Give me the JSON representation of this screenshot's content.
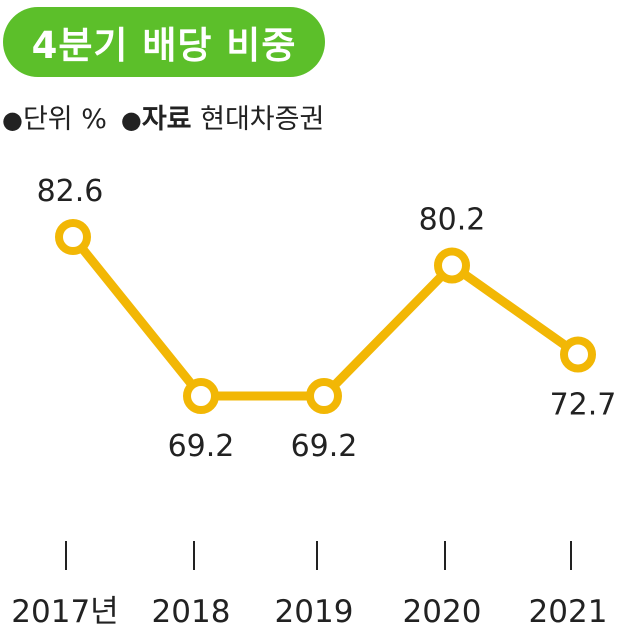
{
  "header": {
    "title": "4분기 배당 비중",
    "unit_label": "단위",
    "unit_value": "%",
    "source_label": "자료",
    "source_value": "현대차증권"
  },
  "colors": {
    "title_bg": "#5cbf2a",
    "line": "#f2b705",
    "marker_fill": "#ffffff",
    "text": "#222222"
  },
  "chart_data": {
    "type": "line",
    "categories": [
      "2017년",
      "2018",
      "2019",
      "2020",
      "2021"
    ],
    "values": [
      82.6,
      69.2,
      69.2,
      80.2,
      72.7
    ],
    "data_labels": [
      "82.6",
      "69.2",
      "69.2",
      "80.2",
      "72.7"
    ],
    "label_position": [
      "above",
      "below",
      "below",
      "above",
      "below"
    ],
    "grid": false,
    "legend": "none"
  }
}
